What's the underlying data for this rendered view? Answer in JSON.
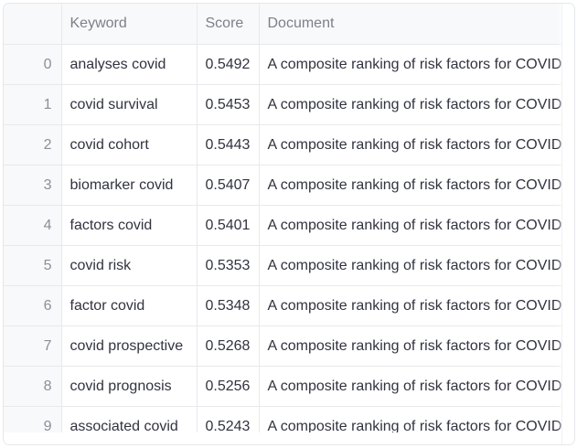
{
  "table": {
    "columns": [
      "",
      "Keyword",
      "Score",
      "Document"
    ],
    "rows": [
      {
        "index": "0",
        "keyword": "analyses covid",
        "score": "0.5492",
        "document": "A composite ranking of risk factors for COVID"
      },
      {
        "index": "1",
        "keyword": "covid survival",
        "score": "0.5453",
        "document": "A composite ranking of risk factors for COVID"
      },
      {
        "index": "2",
        "keyword": "covid cohort",
        "score": "0.5443",
        "document": "A composite ranking of risk factors for COVID"
      },
      {
        "index": "3",
        "keyword": "biomarker covid",
        "score": "0.5407",
        "document": "A composite ranking of risk factors for COVID"
      },
      {
        "index": "4",
        "keyword": "factors covid",
        "score": "0.5401",
        "document": "A composite ranking of risk factors for COVID"
      },
      {
        "index": "5",
        "keyword": "covid risk",
        "score": "0.5353",
        "document": "A composite ranking of risk factors for COVID"
      },
      {
        "index": "6",
        "keyword": "factor covid",
        "score": "0.5348",
        "document": "A composite ranking of risk factors for COVID"
      },
      {
        "index": "7",
        "keyword": "covid prospective",
        "score": "0.5268",
        "document": "A composite ranking of risk factors for COVID"
      },
      {
        "index": "8",
        "keyword": "covid prognosis",
        "score": "0.5256",
        "document": "A composite ranking of risk factors for COVID"
      },
      {
        "index": "9",
        "keyword": "associated covid",
        "score": "0.5243",
        "document": "A composite ranking of risk factors for COVID"
      }
    ]
  }
}
